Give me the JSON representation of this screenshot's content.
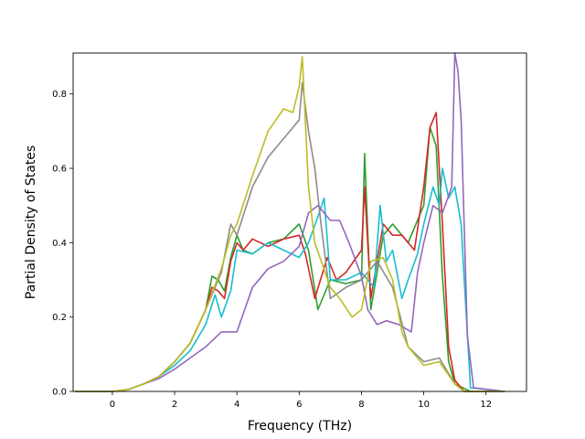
{
  "chart_data": {
    "type": "line",
    "title": "",
    "xlabel": "Frequency (THz)",
    "ylabel": "Partial Density of States",
    "xlim": [
      -1.26,
      13.3
    ],
    "ylim": [
      0.0,
      0.91
    ],
    "xticks": [
      0,
      2,
      4,
      6,
      8,
      10,
      12
    ],
    "yticks": [
      0.0,
      0.2,
      0.4,
      0.6,
      0.8
    ],
    "xtick_labels": [
      "0",
      "2",
      "4",
      "6",
      "8",
      "10",
      "12"
    ],
    "ytick_labels": [
      "0.0",
      "0.2",
      "0.4",
      "0.6",
      "0.8"
    ],
    "grid": false,
    "legend": "none",
    "series": [
      {
        "color": "#2ca02c",
        "x": [
          -1.2,
          0.0,
          0.5,
          1.0,
          1.5,
          2.0,
          2.5,
          3.0,
          3.2,
          3.4,
          3.6,
          3.8,
          4.0,
          4.2,
          4.5,
          5.0,
          5.5,
          6.0,
          6.3,
          6.6,
          7.0,
          7.5,
          8.0,
          8.1,
          8.3,
          8.7,
          9.0,
          9.3,
          9.5,
          10.0,
          10.2,
          10.4,
          10.6,
          10.8,
          11.0,
          11.5,
          12.6
        ],
        "y": [
          0.0,
          0.0,
          0.005,
          0.02,
          0.04,
          0.08,
          0.13,
          0.22,
          0.31,
          0.3,
          0.27,
          0.36,
          0.42,
          0.38,
          0.37,
          0.4,
          0.41,
          0.45,
          0.38,
          0.22,
          0.3,
          0.29,
          0.3,
          0.64,
          0.22,
          0.42,
          0.45,
          0.42,
          0.4,
          0.5,
          0.71,
          0.66,
          0.31,
          0.08,
          0.02,
          0.0,
          0.0
        ]
      },
      {
        "color": "#d62728",
        "x": [
          -1.2,
          0.0,
          0.5,
          1.0,
          1.5,
          2.0,
          2.5,
          3.0,
          3.2,
          3.4,
          3.6,
          3.8,
          4.0,
          4.2,
          4.5,
          5.0,
          5.5,
          6.0,
          6.2,
          6.5,
          6.9,
          7.2,
          7.5,
          8.0,
          8.1,
          8.3,
          8.7,
          9.0,
          9.3,
          9.7,
          10.0,
          10.2,
          10.4,
          10.6,
          10.8,
          11.0,
          11.3,
          12.6
        ],
        "y": [
          0.0,
          0.0,
          0.005,
          0.02,
          0.04,
          0.08,
          0.13,
          0.22,
          0.28,
          0.27,
          0.25,
          0.35,
          0.4,
          0.38,
          0.41,
          0.39,
          0.41,
          0.42,
          0.37,
          0.25,
          0.36,
          0.3,
          0.32,
          0.38,
          0.55,
          0.25,
          0.45,
          0.42,
          0.42,
          0.38,
          0.55,
          0.71,
          0.75,
          0.45,
          0.12,
          0.03,
          0.0,
          0.0
        ]
      },
      {
        "color": "#17becf",
        "x": [
          -1.2,
          0.0,
          0.5,
          1.0,
          1.5,
          2.0,
          2.5,
          3.0,
          3.3,
          3.5,
          3.8,
          4.0,
          4.5,
          5.0,
          5.5,
          6.0,
          6.3,
          6.6,
          6.8,
          7.0,
          7.5,
          8.0,
          8.4,
          8.6,
          8.8,
          9.0,
          9.3,
          9.5,
          9.8,
          10.0,
          10.3,
          10.5,
          10.6,
          10.8,
          11.0,
          11.2,
          11.3,
          11.5,
          12.6
        ],
        "y": [
          0.0,
          0.0,
          0.005,
          0.02,
          0.04,
          0.07,
          0.11,
          0.18,
          0.26,
          0.2,
          0.27,
          0.38,
          0.37,
          0.4,
          0.38,
          0.36,
          0.4,
          0.47,
          0.52,
          0.3,
          0.3,
          0.32,
          0.28,
          0.5,
          0.35,
          0.38,
          0.25,
          0.3,
          0.37,
          0.45,
          0.55,
          0.5,
          0.6,
          0.52,
          0.55,
          0.45,
          0.3,
          0.01,
          0.0
        ]
      },
      {
        "color": "#9467bd",
        "x": [
          -1.2,
          0.0,
          0.5,
          1.0,
          1.5,
          2.0,
          2.5,
          3.0,
          3.5,
          4.0,
          4.5,
          5.0,
          5.5,
          6.0,
          6.3,
          6.6,
          7.0,
          7.3,
          7.6,
          8.0,
          8.2,
          8.5,
          8.8,
          9.2,
          9.6,
          9.8,
          10.0,
          10.3,
          10.6,
          10.9,
          11.0,
          11.1,
          11.2,
          11.4,
          11.6,
          12.6
        ],
        "y": [
          0.0,
          0.0,
          0.005,
          0.02,
          0.035,
          0.06,
          0.09,
          0.12,
          0.16,
          0.16,
          0.28,
          0.33,
          0.35,
          0.39,
          0.48,
          0.5,
          0.46,
          0.46,
          0.4,
          0.31,
          0.22,
          0.18,
          0.19,
          0.18,
          0.16,
          0.32,
          0.4,
          0.5,
          0.48,
          0.55,
          0.91,
          0.86,
          0.73,
          0.15,
          0.01,
          0.0
        ]
      },
      {
        "color": "#8c8c8c",
        "x": [
          -1.2,
          0.0,
          0.5,
          1.0,
          1.5,
          2.0,
          2.5,
          3.0,
          3.5,
          3.8,
          4.0,
          4.5,
          5.0,
          5.5,
          6.0,
          6.1,
          6.3,
          6.5,
          6.7,
          7.0,
          7.5,
          8.0,
          8.5,
          9.0,
          9.5,
          10.0,
          10.5,
          11.0,
          11.3,
          12.6
        ],
        "y": [
          0.0,
          0.0,
          0.005,
          0.02,
          0.04,
          0.08,
          0.13,
          0.22,
          0.32,
          0.45,
          0.42,
          0.55,
          0.63,
          0.68,
          0.73,
          0.83,
          0.7,
          0.6,
          0.45,
          0.25,
          0.28,
          0.3,
          0.35,
          0.28,
          0.12,
          0.08,
          0.09,
          0.02,
          0.0,
          0.0
        ]
      },
      {
        "color": "#bcbd22",
        "x": [
          -1.2,
          0.0,
          0.5,
          1.0,
          1.5,
          2.0,
          2.5,
          3.0,
          3.5,
          3.8,
          4.0,
          4.5,
          5.0,
          5.5,
          5.8,
          6.0,
          6.1,
          6.3,
          6.5,
          7.0,
          7.3,
          7.7,
          8.0,
          8.3,
          8.7,
          9.0,
          9.3,
          9.5,
          10.0,
          10.5,
          11.0,
          11.3,
          12.6
        ],
        "y": [
          0.0,
          0.0,
          0.005,
          0.02,
          0.04,
          0.08,
          0.13,
          0.22,
          0.33,
          0.42,
          0.45,
          0.58,
          0.7,
          0.76,
          0.75,
          0.82,
          0.9,
          0.55,
          0.4,
          0.28,
          0.25,
          0.2,
          0.22,
          0.35,
          0.36,
          0.3,
          0.16,
          0.12,
          0.07,
          0.08,
          0.02,
          0.0,
          0.0
        ]
      }
    ]
  }
}
